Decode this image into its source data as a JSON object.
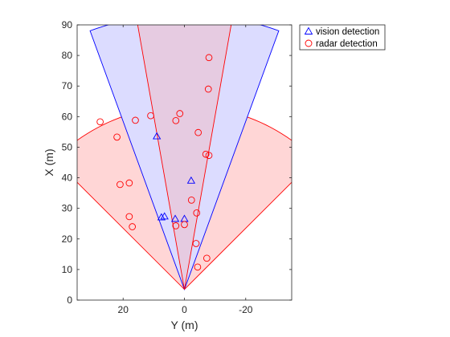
{
  "chart_data": {
    "type": "scatter",
    "xlabel": "Y (m)",
    "ylabel": "X (m)",
    "xlim": [
      35,
      -35
    ],
    "ylim": [
      0,
      90
    ],
    "x_reversed": true,
    "xticks": [
      20,
      0,
      -20
    ],
    "xtick_labels": [
      "20",
      "0",
      "-20"
    ],
    "yticks": [
      0,
      10,
      20,
      30,
      40,
      50,
      60,
      70,
      80,
      90
    ],
    "ytick_labels": [
      "0",
      "10",
      "20",
      "30",
      "40",
      "50",
      "60",
      "70",
      "80",
      "90"
    ],
    "sensor_origin": [
      0,
      3.5
    ],
    "coverage": [
      {
        "sensor": "radar",
        "range": 60,
        "fov_deg": 90,
        "color": "#ff0000",
        "fill": "#ffd6d6"
      },
      {
        "sensor": "vision",
        "range": 90,
        "fov_deg": 40,
        "color": "#0000ff",
        "fill": "#dcdcff"
      },
      {
        "sensor": "radar_narrow",
        "range": 90,
        "fov_deg": 20,
        "color": "#ff0000",
        "fill": "#e8c8dc"
      }
    ],
    "series": [
      {
        "name": "vision detection",
        "marker": "triangle",
        "color": "#0000ff",
        "points": [
          [
            9,
            53.5
          ],
          [
            -2.2,
            39
          ],
          [
            6.5,
            27.3
          ],
          [
            7.5,
            27
          ],
          [
            3,
            26.5
          ],
          [
            0,
            26.5
          ]
        ]
      },
      {
        "name": "radar detection",
        "marker": "circle",
        "color": "#ff0000",
        "points": [
          [
            -8,
            79.3
          ],
          [
            -7.8,
            69
          ],
          [
            27.5,
            58.3
          ],
          [
            22,
            53.3
          ],
          [
            16,
            58.8
          ],
          [
            11,
            60.3
          ],
          [
            1.5,
            61
          ],
          [
            2.8,
            58.7
          ],
          [
            -4.5,
            54.8
          ],
          [
            -7,
            47.7
          ],
          [
            -8,
            47.3
          ],
          [
            21,
            37.8
          ],
          [
            18,
            38.3
          ],
          [
            -2.3,
            32.7
          ],
          [
            -4,
            28.5
          ],
          [
            18,
            27.3
          ],
          [
            17,
            24
          ],
          [
            2.8,
            24.3
          ],
          [
            0,
            24.7
          ],
          [
            -3.8,
            18.5
          ],
          [
            -4.3,
            10.8
          ],
          [
            -7.3,
            13.7
          ]
        ]
      }
    ],
    "legend": {
      "position": "top-right-outside"
    }
  }
}
